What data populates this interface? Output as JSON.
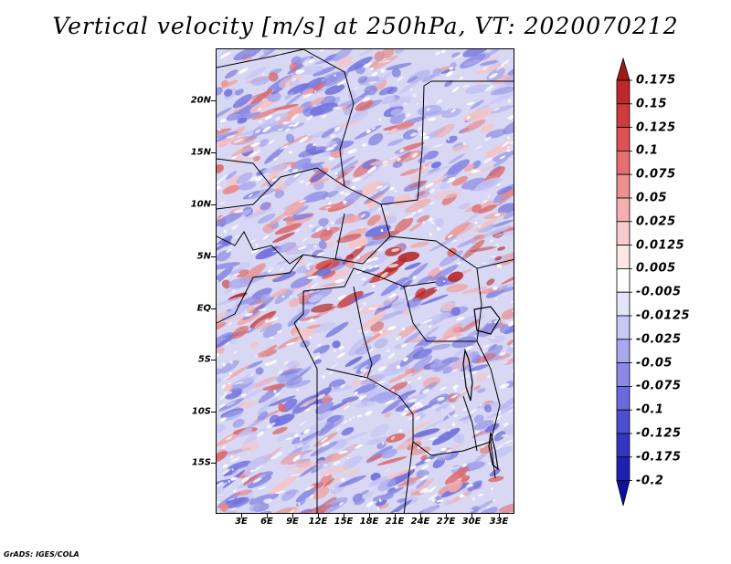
{
  "title": "Vertical velocity [m/s] at 250hPa, VT: 2020070212",
  "credit": "GrADS: IGES/COLA",
  "lat_labels": [
    "20N",
    "15N",
    "10N",
    "5N",
    "EQ",
    "5S",
    "10S",
    "15S"
  ],
  "lon_labels": [
    "3E",
    "6E",
    "9E",
    "12E",
    "15E",
    "18E",
    "21E",
    "24E",
    "27E",
    "30E",
    "33E"
  ],
  "colorbar": {
    "labels": [
      "0.175",
      "0.15",
      "0.125",
      "0.1",
      "0.075",
      "0.05",
      "0.025",
      "0.0125",
      "0.005",
      "-0.005",
      "-0.0125",
      "-0.025",
      "-0.05",
      "-0.075",
      "-0.1",
      "-0.125",
      "-0.175",
      "-0.2"
    ],
    "colors": [
      "#a51818",
      "#bf2828",
      "#d03a3a",
      "#dd5252",
      "#e67070",
      "#ee9090",
      "#f4b0b0",
      "#f8cccc",
      "#fce6e6",
      "#ffffff",
      "#e4e4fa",
      "#c8c8f4",
      "#a8a8ee",
      "#8a8ae6",
      "#6a6ade",
      "#4e4ed2",
      "#3434c2",
      "#2020b0",
      "#1010a0"
    ]
  }
}
